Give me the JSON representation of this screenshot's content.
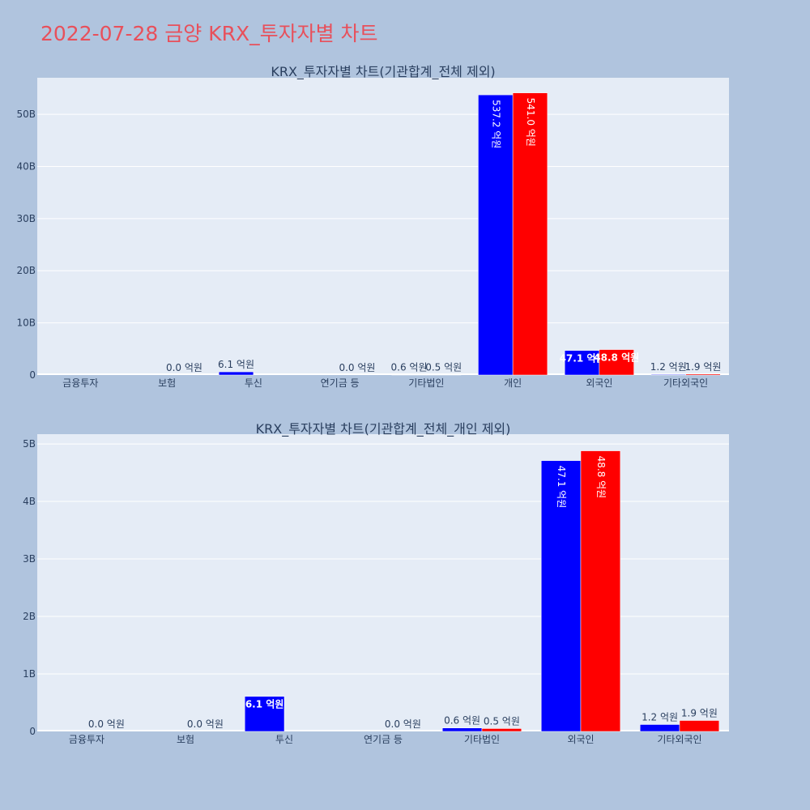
{
  "header": {
    "title": "2022-07-28 금양 KRX_투자자별 차트"
  },
  "colors": {
    "background": "#b0c4de",
    "plot_bg": "#e5ecf6",
    "title": "#e8505b",
    "buy": "#0000ff",
    "sell": "#ff0000",
    "text": "#2a3f5f"
  },
  "chart_data": [
    {
      "type": "bar",
      "title": "KRX_투자자별 차트(기관합계_전체 제외)",
      "xlabel": "",
      "ylabel": "",
      "categories": [
        "금융투자",
        "보험",
        "투신",
        "연기금 등",
        "기타법인",
        "개인",
        "외국인",
        "기타외국인"
      ],
      "ylim": [
        0,
        57000000000
      ],
      "yticks": [
        0,
        10000000000,
        20000000000,
        30000000000,
        40000000000,
        50000000000
      ],
      "ytick_labels": [
        "0",
        "10B",
        "20B",
        "30B",
        "40B",
        "50B"
      ],
      "grid": true,
      "series": [
        {
          "color": "#0000ff",
          "values": [
            0,
            0,
            610000000,
            0,
            60000000,
            53720000000,
            4710000000,
            120000000
          ],
          "labels": [
            "",
            "",
            "6.1 억원",
            "",
            "0.6 억원",
            "537.2 억원",
            "47.1 억원",
            "1.2 억원"
          ]
        },
        {
          "color": "#ff0000",
          "values": [
            0,
            0,
            0,
            0,
            50000000,
            54100000000,
            4880000000,
            190000000
          ],
          "labels": [
            "",
            "0.0 억원",
            "",
            "0.0 억원",
            "0.5 억원",
            "541.0 억원",
            "48.8 억원",
            "1.9 억원"
          ]
        }
      ]
    },
    {
      "type": "bar",
      "title": "KRX_투자자별 차트(기관합계_전체_개인 제외)",
      "xlabel": "",
      "ylabel": "",
      "categories": [
        "금융투자",
        "보험",
        "투신",
        "연기금 등",
        "기타법인",
        "외국인",
        "기타외국인"
      ],
      "ylim": [
        0,
        5170000000
      ],
      "yticks": [
        0,
        1000000000,
        2000000000,
        3000000000,
        4000000000,
        5000000000
      ],
      "ytick_labels": [
        "0",
        "1B",
        "2B",
        "3B",
        "4B",
        "5B"
      ],
      "grid": true,
      "series": [
        {
          "color": "#0000ff",
          "values": [
            0,
            0,
            610000000,
            0,
            60000000,
            4710000000,
            120000000
          ],
          "labels": [
            "",
            "",
            "6.1 억원",
            "",
            "0.6 억원",
            "47.1 억원",
            "1.2 억원"
          ]
        },
        {
          "color": "#ff0000",
          "values": [
            0,
            0,
            0,
            0,
            50000000,
            4880000000,
            190000000
          ],
          "labels": [
            "0.0 억원",
            "0.0 억원",
            "",
            "0.0 억원",
            "0.5 억원",
            "48.8 억원",
            "1.9 억원"
          ]
        }
      ]
    }
  ]
}
